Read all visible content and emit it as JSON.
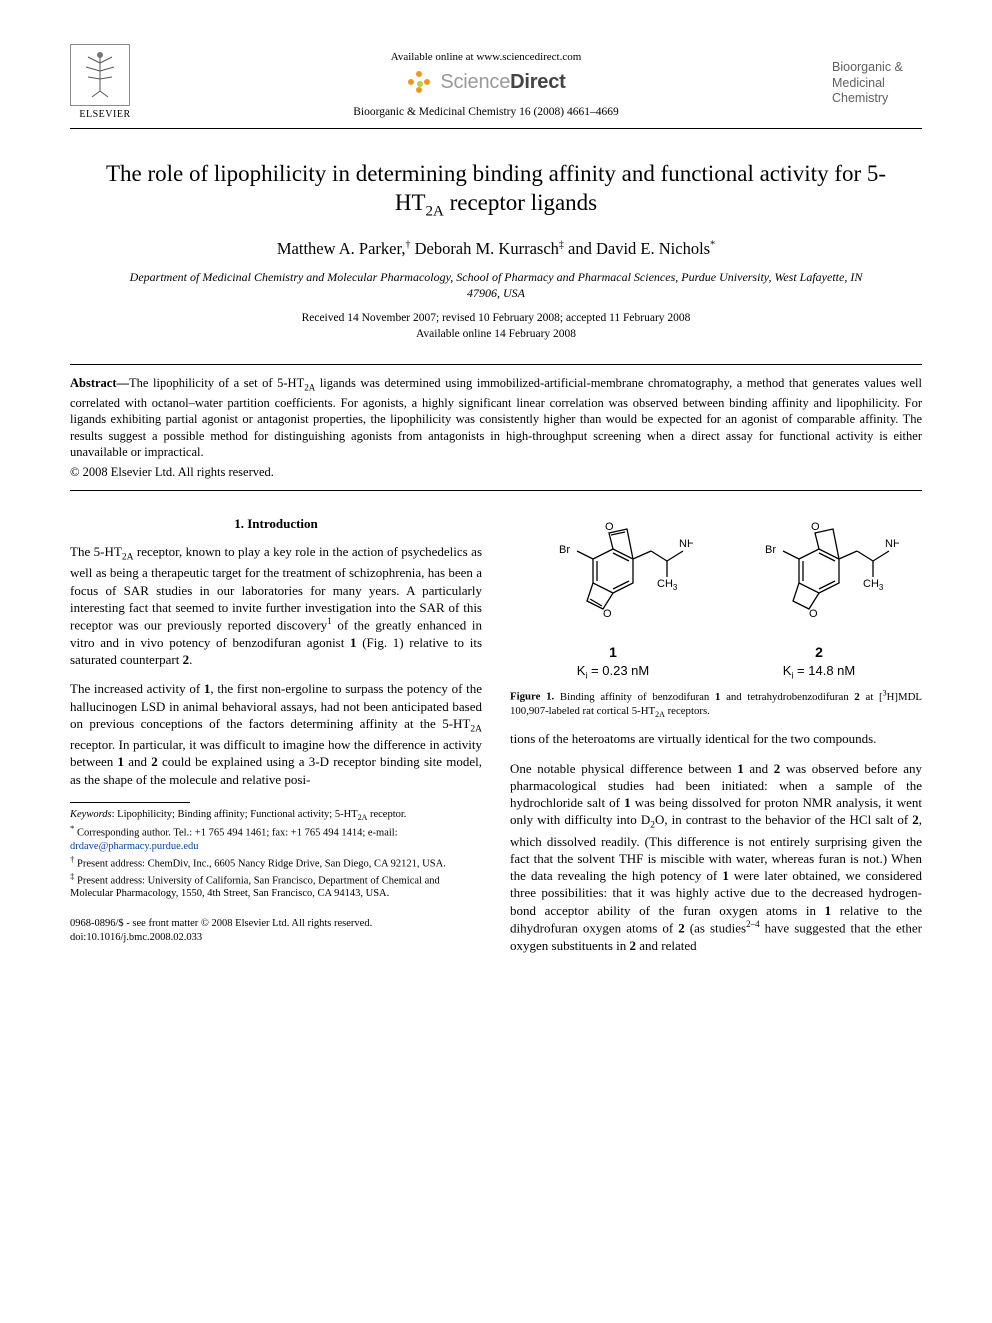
{
  "header": {
    "publisher_name": "ELSEVIER",
    "available_online": "Available online at www.sciencedirect.com",
    "sciencedirect_word1": "Science",
    "sciencedirect_word2": "Direct",
    "journal_ref": "Bioorganic & Medicinal Chemistry 16 (2008) 4661–4669",
    "journal_cover_line1": "Bioorganic &",
    "journal_cover_line2": "Medicinal",
    "journal_cover_line3": "Chemistry",
    "colors": {
      "sd_orange": "#f7931e",
      "sd_green": "#b8d43c",
      "sd_light_text": "#999999",
      "sd_dark_text": "#444444",
      "cover_text": "#606060",
      "link_blue": "#0545a6"
    }
  },
  "title_html": "The role of lipophilicity in determining binding affinity and functional activity for 5-HT<sub>2A</sub> receptor ligands",
  "authors_html": "Matthew A. Parker,<sup>†</sup> Deborah M. Kurrasch<sup>‡</sup> and David E. Nichols<sup>*</sup>",
  "affiliation": "Department of Medicinal Chemistry and Molecular Pharmacology, School of Pharmacy and Pharmacal Sciences, Purdue University, West Lafayette, IN 47906, USA",
  "dates_line1": "Received 14 November 2007; revised 10 February 2008; accepted 11 February 2008",
  "dates_line2": "Available online 14 February 2008",
  "abstract": {
    "label": "Abstract—",
    "text_html": "The lipophilicity of a set of 5-HT<sub>2A</sub> ligands was determined using immobilized-artificial-membrane chromatography, a method that generates values well correlated with octanol–water partition coefficients. For agonists, a highly significant linear correlation was observed between binding affinity and lipophilicity. For ligands exhibiting partial agonist or antagonist properties, the lipophilicity was consistently higher than would be expected for an agonist of comparable affinity. The results suggest a possible method for distinguishing agonists from antagonists in high-throughput screening when a direct assay for functional activity is either unavailable or impractical.",
    "copyright": "© 2008 Elsevier Ltd. All rights reserved."
  },
  "section1_heading": "1. Introduction",
  "intro_p1_html": "The 5-HT<sub>2A</sub> receptor, known to play a key role in the action of psychedelics as well as being a therapeutic target for the treatment of schizophrenia, has been a focus of SAR studies in our laboratories for many years. A particularly interesting fact that seemed to invite further investigation into the SAR of this receptor was our previously reported discovery<sup>1</sup> of the greatly enhanced in vitro and in vivo potency of benzodifuran agonist <b>1</b> (Fig. 1) relative to its saturated counterpart <b>2</b>.",
  "intro_p2_html": "The increased activity of <b>1</b>, the first non-ergoline to surpass the potency of the hallucinogen LSD in animal behavioral assays, had not been anticipated based on previous conceptions of the factors determining affinity at the 5-HT<sub>2A</sub> receptor. In particular, it was difficult to imagine how the difference in activity between <b>1</b> and <b>2</b> could be explained using a 3-D receptor binding site model, as the shape of the molecule and relative posi-",
  "right_p1_html": "tions of the heteroatoms are virtually identical for the two compounds.",
  "right_p2_html": "One notable physical difference between <b>1</b> and <b>2</b> was observed before any pharmacological studies had been initiated: when a sample of the hydrochloride salt of <b>1</b> was being dissolved for proton NMR analysis, it went only with difficulty into D<sub>2</sub>O, in contrast to the behavior of the HCl salt of <b>2</b>, which dissolved readily. (This difference is not entirely surprising given the fact that the solvent THF is miscible with water, whereas furan is not.) When the data revealing the high potency of <b>1</b> were later obtained, we considered three possibilities: that it was highly active due to the decreased hydrogen-bond acceptor ability of the furan oxygen atoms in <b>1</b> relative to the dihydrofuran oxygen atoms of <b>2</b> (as studies<sup>2–4</sup> have suggested that the ether oxygen substituents in <b>2</b> and related",
  "figure1": {
    "mol1": {
      "number": "1",
      "ki_html": "K<sub>i</sub> = 0.23 nM",
      "br_label": "Br",
      "nh2_label": "NH",
      "nh2_sub": "2",
      "ch3_label": "CH",
      "ch3_sub": "3",
      "o_label": "O"
    },
    "mol2": {
      "number": "2",
      "ki_html": "K<sub>i</sub> = 14.8 nM",
      "br_label": "Br",
      "nh2_label": "NH",
      "nh2_sub": "2",
      "ch3_label": "CH",
      "ch3_sub": "3",
      "o_label": "O"
    },
    "caption_label": "Figure 1.",
    "caption_html": " Binding affinity of benzodifuran <b>1</b> and tetrahydrobenzodifuran <b>2</b> at [<sup>3</sup>H]MDL 100,907-labeled rat cortical 5-HT<sub>2A</sub> receptors."
  },
  "footnotes": {
    "keywords_label": "Keywords",
    "keywords_html": ": Lipophilicity; Binding affinity; Functional activity; 5-HT<sub>2A</sub> receptor.",
    "corr_symbol": "*",
    "corr_text": " Corresponding author. Tel.: +1 765 494 1461; fax: +1 765 494 1414; e-mail: ",
    "corr_email": "drdave@pharmacy.purdue.edu",
    "dagger_symbol": "†",
    "dagger_text": " Present address: ChemDiv, Inc., 6605 Nancy Ridge Drive, San Diego, CA 92121, USA.",
    "ddagger_symbol": "‡",
    "ddagger_text": " Present address: University of California, San Francisco, Department of Chemical and Molecular Pharmacology, 1550, 4th Street, San Francisco, CA 94143, USA."
  },
  "doi": {
    "front_matter": "0968-0896/$ - see front matter © 2008 Elsevier Ltd. All rights reserved.",
    "doi_text": "doi:10.1016/j.bmc.2008.02.033"
  }
}
